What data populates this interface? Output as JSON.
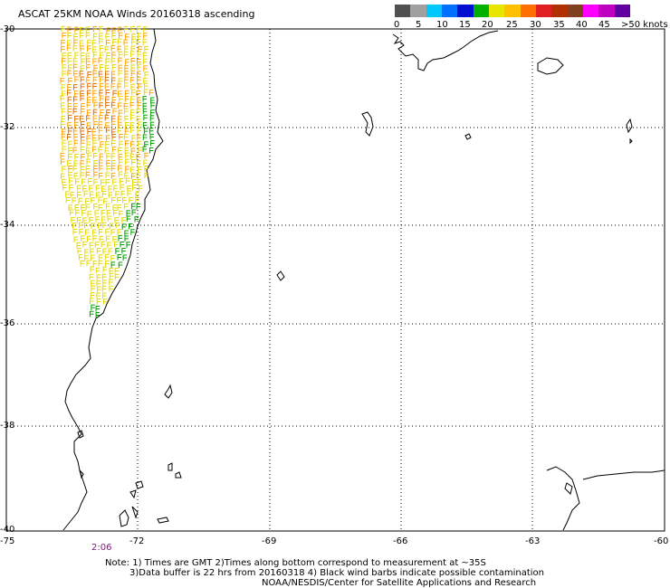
{
  "title": "ASCAT 25KM NOAA Winds 20160318 ascending",
  "colorbar": {
    "colors": [
      "#505050",
      "#a0a0a0",
      "#00c8ff",
      "#0070ff",
      "#0010d0",
      "#00b000",
      "#e6e600",
      "#ffc000",
      "#ff7000",
      "#e02020",
      "#b03000",
      "#804020",
      "#ff00ff",
      "#c000c0",
      "#6000a0"
    ],
    "labels": [
      "0",
      "5",
      "10",
      "15",
      "20",
      "25",
      "30",
      "35",
      "40",
      "45",
      ">50 knots"
    ]
  },
  "lat_labels": [
    "-30",
    "-32",
    "-34",
    "-36",
    "-38",
    "-40"
  ],
  "lon_labels": [
    "-75",
    "-72",
    "-69",
    "-66",
    "-63",
    "-60"
  ],
  "timestamp": "2:06",
  "notes": [
    "Note: 1) Times are GMT 2)Times along bottom correspond to measurement at ~35S",
    "3)Data buffer is 22 hrs from 20160318 4) Black wind barbs indicate possible contamination",
    "NOAA/NESDIS/Center for Satellite Applications and Research"
  ],
  "wind_barbs": {
    "colors": {
      "yellow": "#e6d800",
      "orange": "#ffa500",
      "dark_orange": "#e07000",
      "green": "#00a000"
    }
  }
}
